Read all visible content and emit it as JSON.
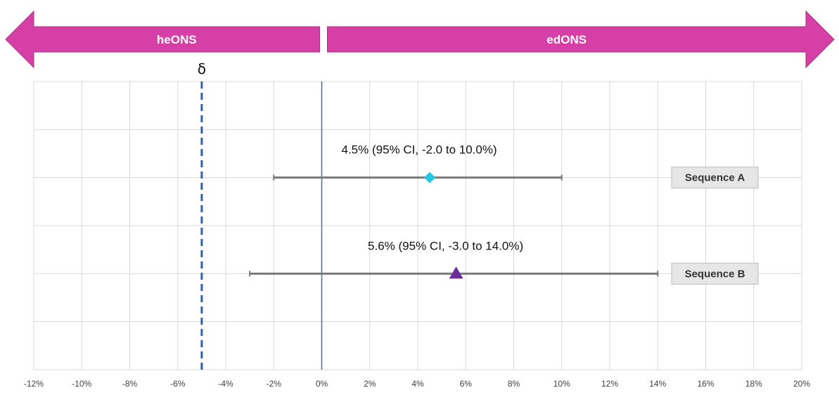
{
  "chart_data": {
    "type": "forest",
    "xlim": [
      -12,
      20
    ],
    "x_ticks": [
      -12,
      -10,
      -8,
      -6,
      -4,
      -2,
      0,
      2,
      4,
      6,
      8,
      10,
      12,
      14,
      16,
      18,
      20
    ],
    "x_tick_suffix": "%",
    "grid": true,
    "horizontal_gridlines": 6,
    "reference_line": 0,
    "margin": {
      "symbol": "δ",
      "value": -5,
      "style": "dashed",
      "color": "#2e5fb0"
    },
    "arrows": {
      "left": {
        "label": "heONS",
        "from": 0,
        "to": -12
      },
      "right": {
        "label": "edONS",
        "from": 0,
        "to": 20
      },
      "color": "#d63fa6"
    },
    "series": [
      {
        "name": "Sequence A",
        "estimate": 4.5,
        "ci_low": -2.0,
        "ci_high": 10.0,
        "annotation": "4.5% (95% CI, -2.0 to 10.0%)",
        "marker": "diamond",
        "color": "#21c8e0"
      },
      {
        "name": "Sequence B",
        "estimate": 5.6,
        "ci_low": -3.0,
        "ci_high": 14.0,
        "annotation": "5.6% (95% CI, -3.0 to 14.0%)",
        "marker": "triangle",
        "color": "#6a2c9a"
      }
    ]
  }
}
